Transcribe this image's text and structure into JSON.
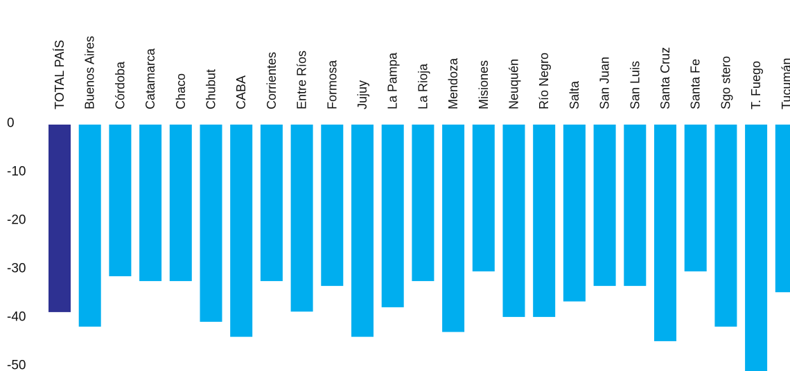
{
  "chart_data": {
    "type": "bar",
    "categories": [
      "TOTAL PAÍS",
      "Buenos Aires",
      "Córdoba",
      "Catamarca",
      "Chaco",
      "Chubut",
      "CABA",
      "Corrientes",
      "Entre Ríos",
      "Formosa",
      "Jujuy",
      "La Pampa",
      "La Rioja",
      "Mendoza",
      "Misiones",
      "Neuquén",
      "Río Negro",
      "Salta",
      "San Juan",
      "San Luis",
      "Santa Cruz",
      "Santa Fe",
      "Sgo stero",
      "T. Fuego",
      "Tucumán"
    ],
    "values": [
      -38.7,
      -41.7,
      -31.3,
      -32.3,
      -32.3,
      -40.7,
      -43.8,
      -32.3,
      -38.6,
      -33.3,
      -43.8,
      -37.7,
      -32.3,
      -42.8,
      -30.3,
      -39.7,
      -39.7,
      -36.5,
      -33.3,
      -33.3,
      -44.7,
      -30.3,
      -41.7,
      -51.8,
      -34.6
    ],
    "highlight_index": 0,
    "colors": {
      "highlight": "#2e3192",
      "bar": "#00aeef"
    },
    "yticks": [
      0,
      -10,
      -20,
      -30,
      -40,
      -50
    ],
    "ylim": [
      -52,
      0
    ],
    "grid": false,
    "title": "",
    "xlabel": "",
    "ylabel": ""
  }
}
